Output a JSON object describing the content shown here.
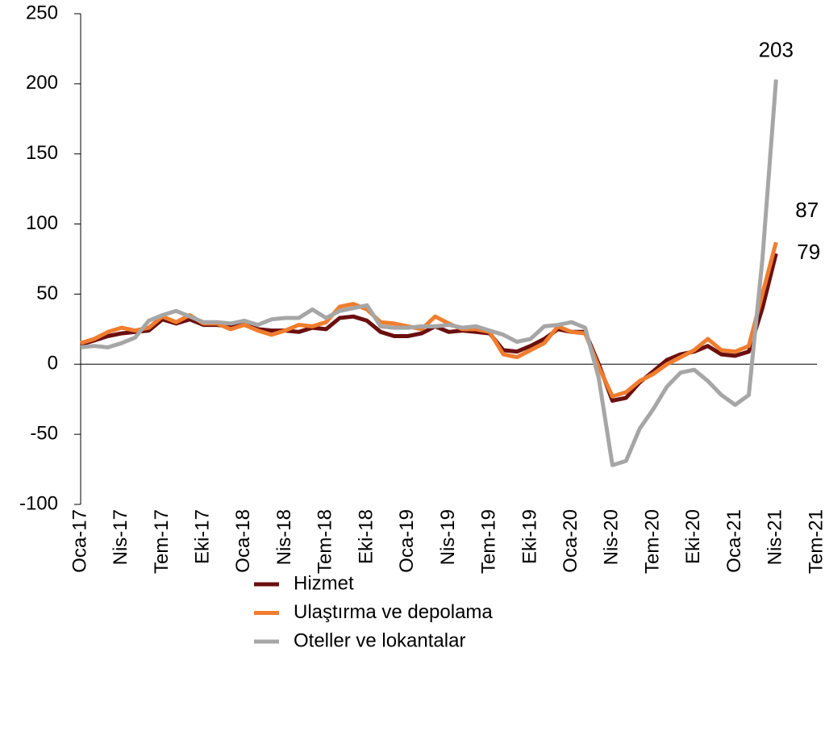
{
  "chart_data": {
    "type": "line",
    "categories": [
      "Oca-17",
      null,
      null,
      "Nis-17",
      null,
      null,
      "Tem-17",
      null,
      null,
      "Eki-17",
      null,
      null,
      "Oca-18",
      null,
      null,
      "Nis-18",
      null,
      null,
      "Tem-18",
      null,
      null,
      "Eki-18",
      null,
      null,
      "Oca-19",
      null,
      null,
      "Nis-19",
      null,
      null,
      "Tem-19",
      null,
      null,
      "Eki-19",
      null,
      null,
      "Oca-20",
      null,
      null,
      "Nis-20",
      null,
      null,
      "Tem-20",
      null,
      null,
      "Eki-20",
      null,
      null,
      "Oca-21",
      null,
      null,
      "Nis-21",
      null,
      null,
      "Tem-21"
    ],
    "series": [
      {
        "name": "Hizmet",
        "color": "#6b0f0f",
        "values": [
          14,
          17,
          20,
          22,
          23,
          24,
          32,
          29,
          32,
          28,
          28,
          27,
          28,
          25,
          24,
          24,
          23,
          26,
          25,
          33,
          34,
          31,
          23,
          20,
          20,
          22,
          27,
          23,
          24,
          23,
          22,
          10,
          9,
          13,
          18,
          25,
          23,
          23,
          0,
          -26,
          -24,
          -13,
          -5,
          3,
          7,
          9,
          13,
          7,
          6,
          9,
          40,
          79,
          null,
          null,
          null
        ]
      },
      {
        "name": "Ulaştırma ve depolama",
        "color": "#f07d2e",
        "values": [
          15,
          18,
          23,
          26,
          24,
          26,
          34,
          30,
          35,
          29,
          29,
          25,
          28,
          24,
          21,
          24,
          28,
          27,
          30,
          41,
          43,
          39,
          30,
          29,
          27,
          25,
          34,
          29,
          25,
          25,
          23,
          7,
          5,
          10,
          15,
          27,
          23,
          22,
          -2,
          -23,
          -20,
          -12,
          -7,
          0,
          5,
          10,
          18,
          10,
          9,
          13,
          50,
          87,
          null,
          null,
          null
        ]
      },
      {
        "name": "Oteller ve lokantalar",
        "color": "#a6a6a6",
        "values": [
          12,
          13,
          12,
          15,
          19,
          31,
          35,
          38,
          34,
          30,
          30,
          29,
          31,
          28,
          32,
          33,
          33,
          39,
          33,
          38,
          40,
          42,
          27,
          26,
          26,
          27,
          27,
          28,
          26,
          27,
          24,
          21,
          16,
          18,
          27,
          28,
          30,
          26,
          -10,
          -72,
          -69,
          -46,
          -32,
          -16,
          -6,
          -4,
          -12,
          -22,
          -29,
          -22,
          75,
          203,
          null,
          null,
          null
        ]
      }
    ],
    "ylim": [
      -100,
      250
    ],
    "yticks": [
      -100,
      -50,
      0,
      50,
      100,
      150,
      200,
      250
    ]
  }
}
